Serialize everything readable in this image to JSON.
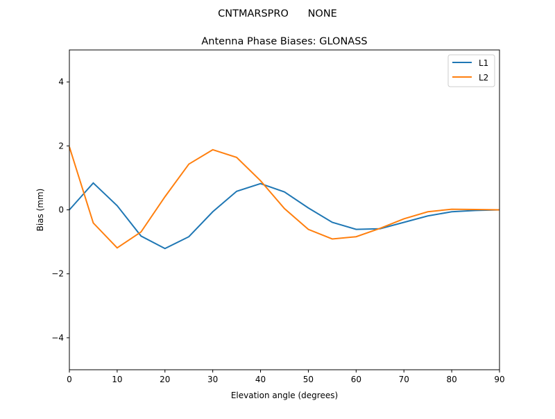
{
  "chart_data": {
    "type": "line",
    "suptitle": "CNTMARSPRO      NONE",
    "title": "Antenna Phase Biases: GLONASS",
    "xlabel": "Elevation angle (degrees)",
    "ylabel": "Bias (mm)",
    "xlim": [
      0,
      90
    ],
    "ylim": [
      -5,
      5
    ],
    "xticks": [
      0,
      10,
      20,
      30,
      40,
      50,
      60,
      70,
      80,
      90
    ],
    "yticks": [
      -4,
      -2,
      0,
      2,
      4
    ],
    "ytick_labels": [
      "−4",
      "−2",
      "0",
      "2",
      "4"
    ],
    "grid": false,
    "legend_position": "top-right",
    "x": [
      0,
      5,
      10,
      15,
      20,
      25,
      30,
      35,
      40,
      45,
      50,
      55,
      60,
      65,
      70,
      75,
      80,
      85,
      90
    ],
    "series": [
      {
        "name": "L1",
        "color": "#1f77b4",
        "values": [
          0.0,
          0.84,
          0.13,
          -0.82,
          -1.21,
          -0.84,
          -0.06,
          0.58,
          0.82,
          0.56,
          0.06,
          -0.39,
          -0.61,
          -0.59,
          -0.39,
          -0.19,
          -0.06,
          -0.02,
          0.0
        ]
      },
      {
        "name": "L2",
        "color": "#ff7f0e",
        "values": [
          1.97,
          -0.41,
          -1.19,
          -0.69,
          0.41,
          1.43,
          1.88,
          1.64,
          0.91,
          0.04,
          -0.61,
          -0.91,
          -0.84,
          -0.58,
          -0.28,
          -0.06,
          0.02,
          0.01,
          0.0
        ]
      }
    ]
  }
}
